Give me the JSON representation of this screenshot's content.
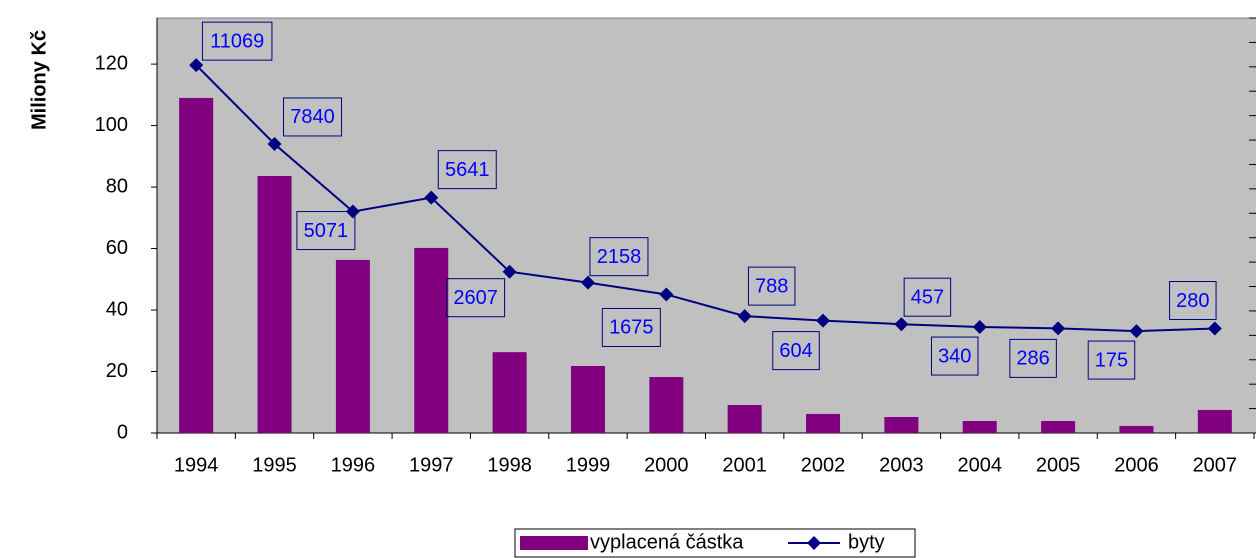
{
  "chart_data": {
    "type": "bar_line",
    "y_label": "Miliony Kč",
    "categories": [
      "1994",
      "1995",
      "1996",
      "1997",
      "1998",
      "1999",
      "2000",
      "2001",
      "2002",
      "2003",
      "2004",
      "2005",
      "2006",
      "2007"
    ],
    "series": [
      {
        "name": "vyplacená částka",
        "type": "bar",
        "color": "#800080",
        "values": [
          109,
          83.6,
          56.3,
          60.2,
          26.3,
          21.8,
          18.2,
          9.1,
          6.2,
          5.2,
          3.9,
          3.9,
          2.3,
          7.5
        ]
      },
      {
        "name": "byty",
        "type": "line",
        "axis": "y2",
        "color": "#000080",
        "label_color": "#0000ff",
        "values": [
          11069,
          7840,
          5071,
          5641,
          2607,
          2158,
          1675,
          788,
          604,
          457,
          340,
          286,
          175,
          280
        ]
      }
    ],
    "ylim": [
      0,
      135
    ],
    "yticks": [
      0,
      20,
      40,
      60,
      80,
      100,
      120
    ],
    "y2lim": [
      -4000,
      13000
    ],
    "y2ticks": [
      -4000,
      -3000,
      -2000,
      -1000,
      0,
      1000,
      2000,
      3000,
      4000,
      5000,
      6000,
      7000,
      8000,
      9000,
      10000,
      11000,
      12000,
      13000
    ],
    "plot_background": "#c0c0c0",
    "legend": "bottom"
  }
}
